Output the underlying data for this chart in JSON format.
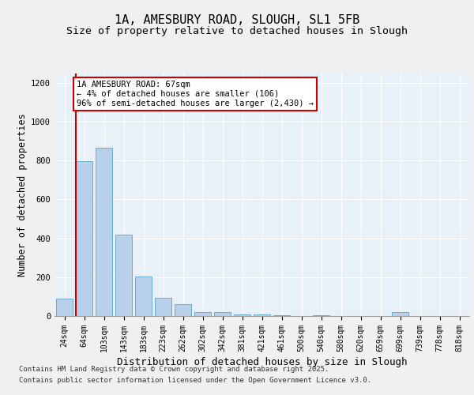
{
  "title_line1": "1A, AMESBURY ROAD, SLOUGH, SL1 5FB",
  "title_line2": "Size of property relative to detached houses in Slough",
  "xlabel": "Distribution of detached houses by size in Slough",
  "ylabel": "Number of detached properties",
  "categories": [
    "24sqm",
    "64sqm",
    "103sqm",
    "143sqm",
    "183sqm",
    "223sqm",
    "262sqm",
    "302sqm",
    "342sqm",
    "381sqm",
    "421sqm",
    "461sqm",
    "500sqm",
    "540sqm",
    "580sqm",
    "620sqm",
    "659sqm",
    "699sqm",
    "739sqm",
    "778sqm",
    "818sqm"
  ],
  "values": [
    90,
    795,
    865,
    420,
    205,
    95,
    60,
    22,
    22,
    10,
    8,
    5,
    0,
    5,
    0,
    0,
    0,
    20,
    0,
    0,
    0
  ],
  "bar_color": "#b8d0ea",
  "bar_edge_color": "#6aaad4",
  "vline_color": "#cc0000",
  "annotation_text": "1A AMESBURY ROAD: 67sqm\n← 4% of detached houses are smaller (106)\n96% of semi-detached houses are larger (2,430) →",
  "annotation_box_color": "#cc0000",
  "ylim": [
    0,
    1250
  ],
  "yticks": [
    0,
    200,
    400,
    600,
    800,
    1000,
    1200
  ],
  "background_color": "#e8f0f8",
  "grid_color": "#ffffff",
  "footer_line1": "Contains HM Land Registry data © Crown copyright and database right 2025.",
  "footer_line2": "Contains public sector information licensed under the Open Government Licence v3.0.",
  "title_fontsize": 11,
  "subtitle_fontsize": 9.5,
  "axis_label_fontsize": 8.5,
  "tick_fontsize": 7,
  "annotation_fontsize": 7.5,
  "footer_fontsize": 6.5
}
